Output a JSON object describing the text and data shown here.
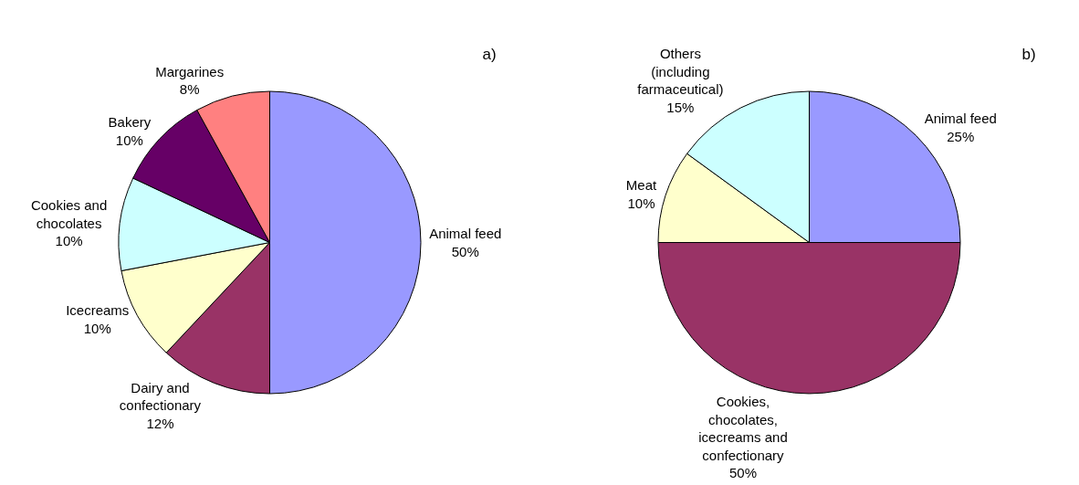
{
  "chart_data": [
    {
      "type": "pie",
      "title": "a)",
      "categories": [
        "Animal feed",
        "Dairy and confectionary",
        "Icecreams",
        "Cookies and chocolates",
        "Bakery",
        "Margarines"
      ],
      "values": [
        50,
        12,
        10,
        10,
        10,
        8
      ],
      "value_labels": [
        "50%",
        "12%",
        "10%",
        "10%",
        "10%",
        "8%"
      ],
      "colors": [
        "#9999ff",
        "#993366",
        "#ffffcc",
        "#ccffff",
        "#660066",
        "#ff8080"
      ],
      "legend": false
    },
    {
      "type": "pie",
      "title": "b)",
      "categories": [
        "Animal feed",
        "Cookies, chocolates, icecreams and confectionary",
        "Meat",
        "Others (including farmaceutical)"
      ],
      "values": [
        25,
        50,
        10,
        15
      ],
      "value_labels": [
        "25%",
        "50%",
        "10%",
        "15%"
      ],
      "colors": [
        "#9999ff",
        "#993366",
        "#ffffcc",
        "#ccffff"
      ],
      "legend": false
    }
  ]
}
